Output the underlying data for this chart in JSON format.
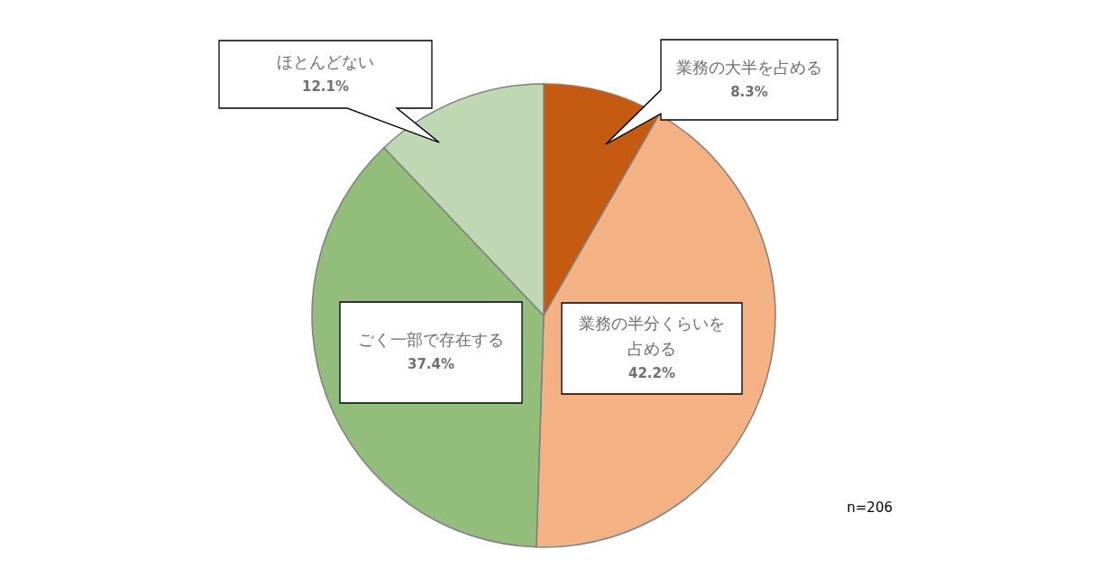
{
  "chart_data": {
    "type": "pie",
    "categories": [
      "業務の大半を占める",
      "業務の半分くらいを占める",
      "ごく一部で存在する",
      "ほとんどない"
    ],
    "values": [
      8.3,
      42.2,
      37.4,
      12.1
    ],
    "colors": [
      "#c55a11",
      "#f4b183",
      "#93bd7a",
      "#c0d7b4"
    ],
    "value_labels": [
      "8.3%",
      "42.2%",
      "37.4%",
      "12.1%"
    ],
    "annotations": [
      "n=206"
    ]
  }
}
